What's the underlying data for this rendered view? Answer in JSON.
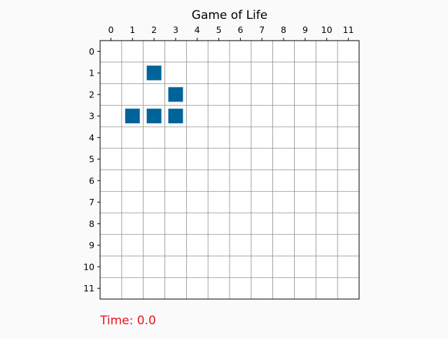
{
  "title": "Game of Life",
  "grid": {
    "rows": 12,
    "cols": 12,
    "col_labels": [
      "0",
      "1",
      "2",
      "3",
      "4",
      "5",
      "6",
      "7",
      "8",
      "9",
      "10",
      "11"
    ],
    "row_labels": [
      "0",
      "1",
      "2",
      "3",
      "4",
      "5",
      "6",
      "7",
      "8",
      "9",
      "10",
      "11"
    ],
    "live_cells": [
      {
        "row": 1,
        "col": 2
      },
      {
        "row": 2,
        "col": 3
      },
      {
        "row": 3,
        "col": 1
      },
      {
        "row": 3,
        "col": 2
      },
      {
        "row": 3,
        "col": 3
      }
    ]
  },
  "status": {
    "time_label": "Time: 0.0"
  },
  "colors": {
    "background": "#fafafa",
    "plot_background": "#ffffff",
    "grid_line": "#8c8c8c",
    "axis": "#000000",
    "cell": "#00649b",
    "time_text": "#e8141e"
  }
}
